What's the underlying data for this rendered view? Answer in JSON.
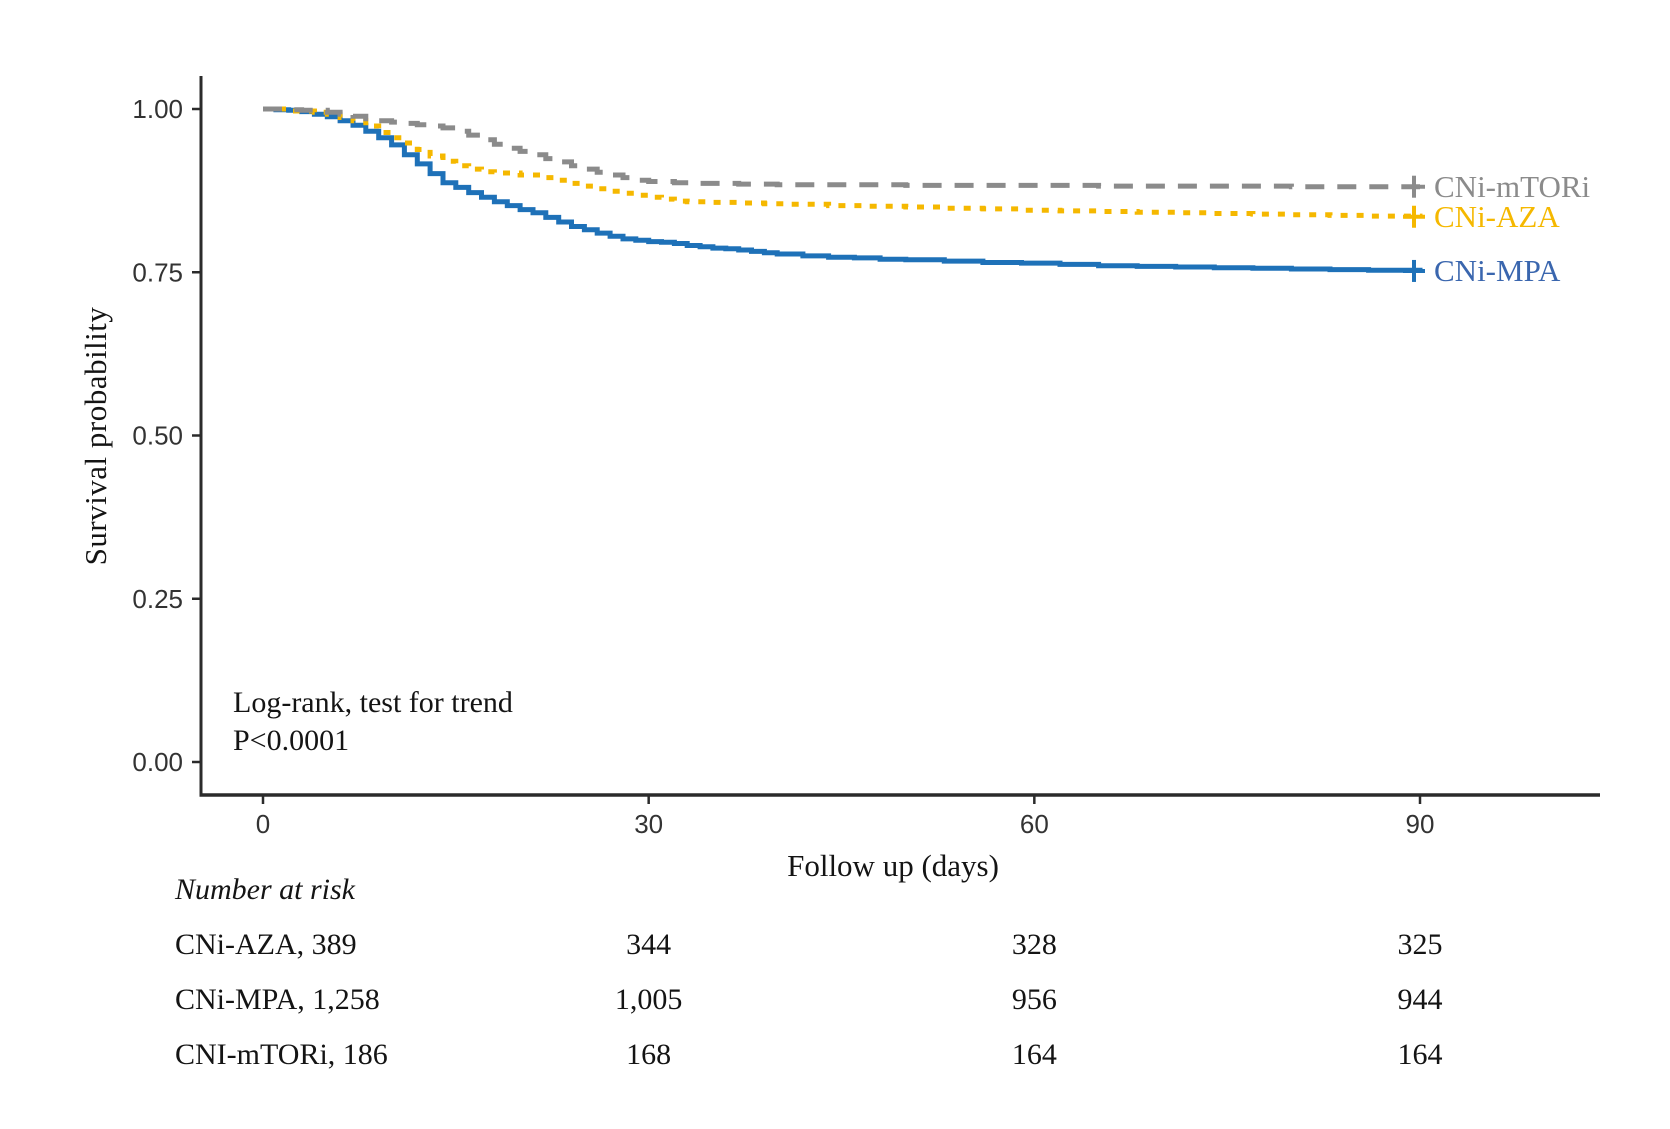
{
  "page": {
    "background": "#ffffff"
  },
  "annotation": {
    "line1": "Log-rank, test for trend",
    "line2": "P<0.0001"
  },
  "chart_data": {
    "type": "line",
    "subtype": "kaplan-meier-step",
    "title": "",
    "xlabel": "Follow up (days)",
    "ylabel": "Survival probability",
    "x_ticks": [
      0,
      30,
      60,
      90
    ],
    "x_tick_labels": [
      "0",
      "30",
      "60",
      "90"
    ],
    "y_ticks": [
      0.0,
      0.25,
      0.5,
      0.75,
      1.0
    ],
    "y_tick_labels": [
      "0.00",
      "0.25",
      "0.50",
      "0.75",
      "1.00"
    ],
    "xlim": [
      -4.8,
      104
    ],
    "ylim": [
      -0.05,
      1.05
    ],
    "grid": false,
    "legend_position": "right-of-line-ends",
    "axis_color": "#2b2b2b",
    "tick_label_color": "#333333",
    "censor_marker": "+",
    "series": [
      {
        "name": "CNi-MPA",
        "color": "#1e71b8",
        "label_color": "#3a66ae",
        "line_style": "solid",
        "dash": "",
        "end_value": 0.752,
        "points": [
          [
            0,
            1
          ],
          [
            1,
            0.999
          ],
          [
            2,
            0.998
          ],
          [
            3,
            0.996
          ],
          [
            4,
            0.992
          ],
          [
            5,
            0.988
          ],
          [
            6,
            0.982
          ],
          [
            7,
            0.975
          ],
          [
            8,
            0.966
          ],
          [
            9,
            0.956
          ],
          [
            10,
            0.945
          ],
          [
            11,
            0.93
          ],
          [
            12,
            0.916
          ],
          [
            13,
            0.901
          ],
          [
            14,
            0.887
          ],
          [
            15,
            0.88
          ],
          [
            16,
            0.872
          ],
          [
            17,
            0.865
          ],
          [
            18,
            0.858
          ],
          [
            19,
            0.852
          ],
          [
            20,
            0.846
          ],
          [
            21,
            0.841
          ],
          [
            22,
            0.834
          ],
          [
            23,
            0.827
          ],
          [
            24,
            0.82
          ],
          [
            25,
            0.815
          ],
          [
            26,
            0.81
          ],
          [
            27,
            0.805
          ],
          [
            28,
            0.801
          ],
          [
            29,
            0.799
          ],
          [
            30,
            0.797
          ],
          [
            31,
            0.796
          ],
          [
            32,
            0.794
          ],
          [
            33,
            0.791
          ],
          [
            34,
            0.789
          ],
          [
            35,
            0.787
          ],
          [
            36,
            0.786
          ],
          [
            37,
            0.784
          ],
          [
            38,
            0.782
          ],
          [
            39,
            0.78
          ],
          [
            40,
            0.778
          ],
          [
            42,
            0.775
          ],
          [
            44,
            0.773
          ],
          [
            46,
            0.772
          ],
          [
            48,
            0.77
          ],
          [
            50,
            0.769
          ],
          [
            53,
            0.767
          ],
          [
            56,
            0.765
          ],
          [
            59,
            0.764
          ],
          [
            62,
            0.762
          ],
          [
            65,
            0.76
          ],
          [
            68,
            0.759
          ],
          [
            71,
            0.758
          ],
          [
            74,
            0.757
          ],
          [
            77,
            0.756
          ],
          [
            80,
            0.755
          ],
          [
            83,
            0.754
          ],
          [
            86,
            0.753
          ],
          [
            90,
            0.752
          ]
        ]
      },
      {
        "name": "CNi-AZA",
        "color": "#f5b800",
        "label_color": "#f5b800",
        "line_style": "dotted",
        "dash": "7 9",
        "end_value": 0.835,
        "points": [
          [
            0,
            1
          ],
          [
            2,
            0.997
          ],
          [
            4,
            0.995
          ],
          [
            5,
            0.992
          ],
          [
            6,
            0.987
          ],
          [
            7,
            0.982
          ],
          [
            8,
            0.974
          ],
          [
            9,
            0.964
          ],
          [
            10,
            0.956
          ],
          [
            11,
            0.948
          ],
          [
            12,
            0.938
          ],
          [
            13,
            0.928
          ],
          [
            14,
            0.92
          ],
          [
            15,
            0.913
          ],
          [
            16,
            0.908
          ],
          [
            17,
            0.904
          ],
          [
            18,
            0.902
          ],
          [
            20,
            0.899
          ],
          [
            22,
            0.895
          ],
          [
            23,
            0.891
          ],
          [
            24,
            0.886
          ],
          [
            25,
            0.882
          ],
          [
            26,
            0.878
          ],
          [
            27,
            0.874
          ],
          [
            28,
            0.871
          ],
          [
            29,
            0.868
          ],
          [
            30,
            0.865
          ],
          [
            31,
            0.862
          ],
          [
            32,
            0.859
          ],
          [
            33,
            0.858
          ],
          [
            35,
            0.857
          ],
          [
            37,
            0.856
          ],
          [
            39,
            0.855
          ],
          [
            41,
            0.854
          ],
          [
            44,
            0.852
          ],
          [
            47,
            0.851
          ],
          [
            50,
            0.85
          ],
          [
            53,
            0.848
          ],
          [
            56,
            0.847
          ],
          [
            59,
            0.845
          ],
          [
            62,
            0.844
          ],
          [
            65,
            0.843
          ],
          [
            68,
            0.842
          ],
          [
            71,
            0.841
          ],
          [
            74,
            0.84
          ],
          [
            77,
            0.839
          ],
          [
            80,
            0.838
          ],
          [
            83,
            0.837
          ],
          [
            86,
            0.836
          ],
          [
            90,
            0.835
          ]
        ]
      },
      {
        "name": "CNi-mTORi",
        "color": "#8b8b8b",
        "label_color": "#8b8b8b",
        "line_style": "dashed",
        "dash": "19 13",
        "end_value": 0.881,
        "points": [
          [
            0,
            1
          ],
          [
            2,
            0.999
          ],
          [
            3,
            0.998
          ],
          [
            5,
            0.995
          ],
          [
            6,
            0.992
          ],
          [
            7,
            0.989
          ],
          [
            8,
            0.985
          ],
          [
            9,
            0.982
          ],
          [
            10,
            0.98
          ],
          [
            11,
            0.978
          ],
          [
            12,
            0.976
          ],
          [
            13,
            0.974
          ],
          [
            14,
            0.971
          ],
          [
            15,
            0.966
          ],
          [
            16,
            0.96
          ],
          [
            17,
            0.953
          ],
          [
            18,
            0.946
          ],
          [
            19,
            0.94
          ],
          [
            20,
            0.935
          ],
          [
            21,
            0.93
          ],
          [
            22,
            0.924
          ],
          [
            23,
            0.919
          ],
          [
            24,
            0.913
          ],
          [
            25,
            0.908
          ],
          [
            26,
            0.903
          ],
          [
            27,
            0.899
          ],
          [
            28,
            0.895
          ],
          [
            29,
            0.891
          ],
          [
            30,
            0.889
          ],
          [
            32,
            0.887
          ],
          [
            34,
            0.886
          ],
          [
            37,
            0.885
          ],
          [
            40,
            0.884
          ],
          [
            45,
            0.884
          ],
          [
            50,
            0.883
          ],
          [
            55,
            0.883
          ],
          [
            60,
            0.883
          ],
          [
            65,
            0.882
          ],
          [
            70,
            0.882
          ],
          [
            75,
            0.882
          ],
          [
            80,
            0.881
          ],
          [
            85,
            0.881
          ],
          [
            90,
            0.881
          ]
        ]
      }
    ]
  },
  "risk_table": {
    "title": "Number at risk",
    "time_columns": [
      30,
      60,
      90
    ],
    "rows": [
      {
        "label": "CNi-AZA, 389",
        "values": [
          "344",
          "328",
          "325"
        ]
      },
      {
        "label": "CNi-MPA, 1,258",
        "values": [
          "1,005",
          "956",
          "944"
        ]
      },
      {
        "label": "CNI-mTORi, 186",
        "values": [
          "168",
          "164",
          "164"
        ]
      }
    ]
  }
}
